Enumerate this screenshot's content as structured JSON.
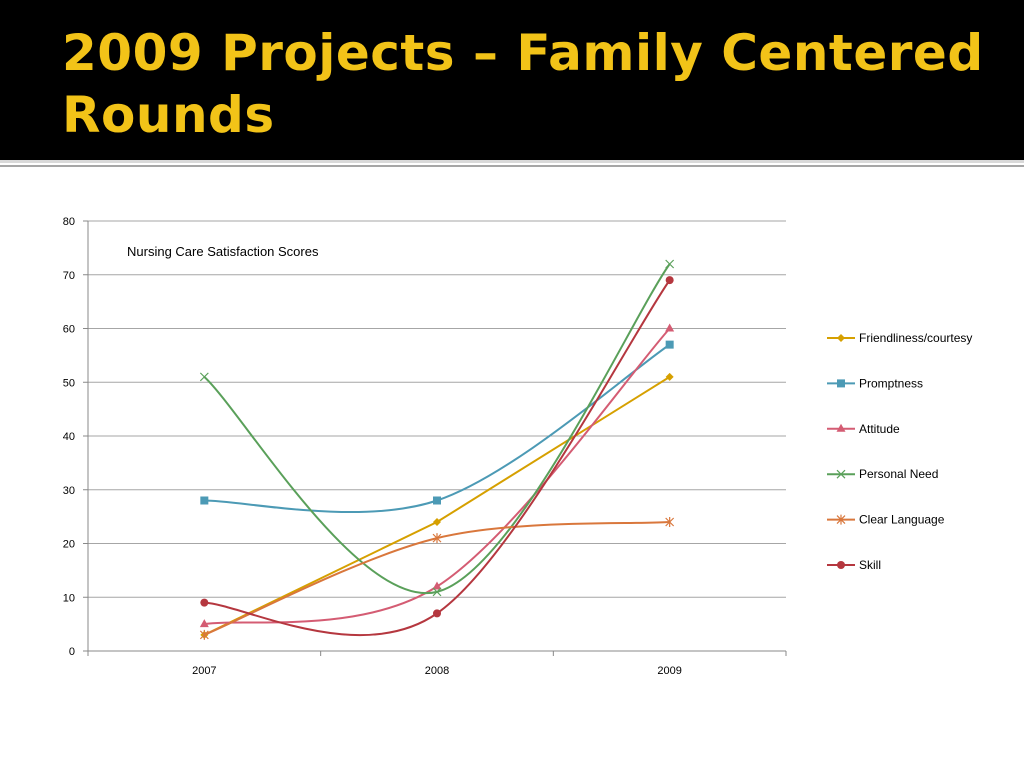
{
  "slide": {
    "title": "2009 Projects – Family Centered Rounds"
  },
  "chart_data": {
    "type": "line",
    "title": "Nursing Care Satisfaction Scores",
    "xlabel": "",
    "ylabel": "",
    "categories": [
      "2007",
      "2008",
      "2009"
    ],
    "ylim": [
      0,
      80
    ],
    "yticks": [
      0,
      10,
      20,
      30,
      40,
      50,
      60,
      70,
      80
    ],
    "grid": true,
    "legend_position": "right",
    "series": [
      {
        "name": "Friendliness/courtesy",
        "values": [
          3,
          24,
          51
        ],
        "color": "#d6a000",
        "marker": "diamond",
        "smooth": false
      },
      {
        "name": "Promptness",
        "values": [
          28,
          28,
          57
        ],
        "color": "#4c9ab5",
        "marker": "square",
        "smooth": true
      },
      {
        "name": "Attitude",
        "values": [
          5,
          12,
          60
        ],
        "color": "#d45c73",
        "marker": "triangle",
        "smooth": true
      },
      {
        "name": "Personal Need",
        "values": [
          51,
          11,
          72
        ],
        "color": "#5aa05a",
        "marker": "x",
        "smooth": true
      },
      {
        "name": "Clear Language",
        "values": [
          3,
          21,
          24
        ],
        "color": "#d9773c",
        "marker": "star",
        "smooth": true
      },
      {
        "name": "Skill",
        "values": [
          9,
          7,
          69
        ],
        "color": "#b5373f",
        "marker": "circle",
        "smooth": true
      }
    ]
  }
}
